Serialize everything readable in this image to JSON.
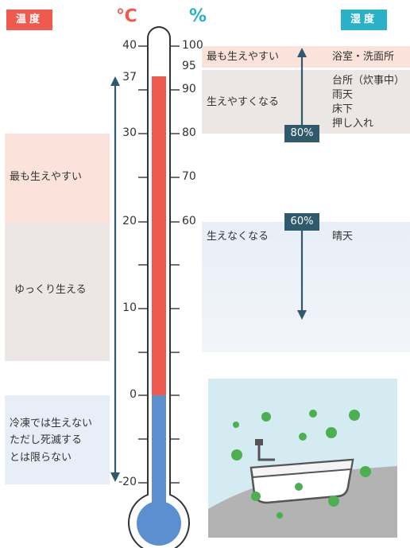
{
  "header": {
    "temp_badge": "温度",
    "humid_badge": "湿度",
    "celsius_unit": "℃",
    "percent_unit": "%"
  },
  "temperature_ticks": [
    "40",
    "37",
    "30",
    "20",
    "10",
    "0",
    "-20"
  ],
  "humidity_ticks": [
    "100",
    "95",
    "90",
    "80",
    "70",
    "60"
  ],
  "temperature_zones": {
    "most": "最も生えやすい",
    "slow": "ゆっくり生える",
    "frozen": [
      "冷凍では生えない",
      "ただし死滅する",
      "とは限らない"
    ]
  },
  "humidity_zones": {
    "most": "最も生えやすい",
    "more": "生えやすくなる",
    "none": "生えなくなる"
  },
  "humidity_places": {
    "most": "浴室・洗面所",
    "more": [
      "台所（炊事中）",
      "雨天",
      "床下",
      "押し入れ"
    ],
    "none": "晴天"
  },
  "humidity_markers": {
    "eighty": "80%",
    "sixty": "60%"
  },
  "colors": {
    "temp_red": "#ef5a4e",
    "cold_blue": "#5b8fcf",
    "teal": "#2ab0c8",
    "dark_arrow": "#2f5a6e",
    "band_pink": "#fbe3dc",
    "band_beige": "#ece7e4",
    "band_blue": "#e8eef7"
  }
}
